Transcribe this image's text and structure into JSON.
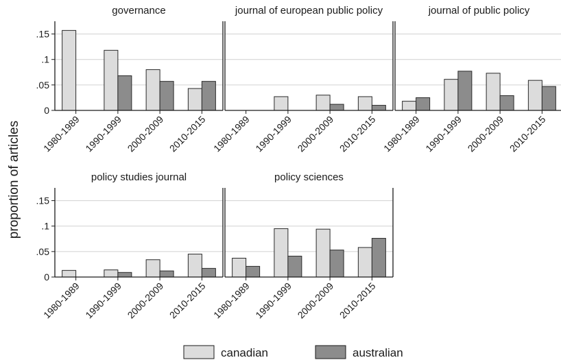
{
  "chart_data": {
    "type": "bar",
    "ylabel": "proportion of articles",
    "categories": [
      "1980-1989",
      "1990-1999",
      "2000-2009",
      "2010-2015"
    ],
    "yticks": [
      0,
      0.05,
      0.1,
      0.15
    ],
    "ytick_labels": [
      "0",
      ".05",
      ".1",
      ".15"
    ],
    "ylim": [
      0,
      0.175
    ],
    "grid": true,
    "legend_position": "bottom",
    "colors": {
      "canadian": "#dcdcdc",
      "australian": "#8c8c8c"
    },
    "series_names": [
      "canadian",
      "australian"
    ],
    "panels": [
      {
        "title": "governance",
        "canadian": [
          0.157,
          0.118,
          0.08,
          0.043
        ],
        "australian": [
          0.0,
          0.068,
          0.057,
          0.057
        ]
      },
      {
        "title": "journal of european public policy",
        "canadian": [
          0.0,
          0.027,
          0.03,
          0.027
        ],
        "australian": [
          0.0,
          0.0,
          0.012,
          0.01
        ]
      },
      {
        "title": "journal of public policy",
        "canadian": [
          0.018,
          0.061,
          0.073,
          0.059
        ],
        "australian": [
          0.025,
          0.077,
          0.029,
          0.047
        ]
      },
      {
        "title": "policy studies journal",
        "canadian": [
          0.013,
          0.014,
          0.034,
          0.045
        ],
        "australian": [
          0.0,
          0.009,
          0.012,
          0.017
        ]
      },
      {
        "title": "policy sciences",
        "canadian": [
          0.037,
          0.095,
          0.094,
          0.058
        ],
        "australian": [
          0.021,
          0.041,
          0.053,
          0.076
        ]
      }
    ]
  }
}
